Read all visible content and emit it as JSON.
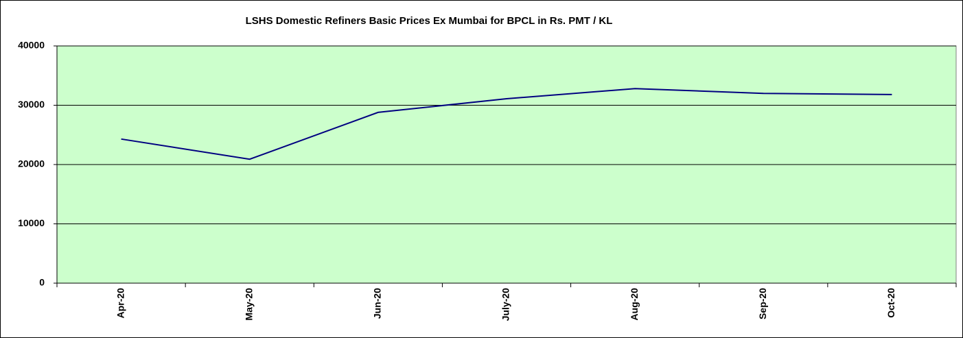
{
  "chart_data": {
    "type": "line",
    "title": "LSHS  Domestic Refiners Basic Prices Ex Mumbai for BPCL  in Rs. PMT / KL",
    "categories": [
      "Apr-20",
      "May-20",
      "Jun-20",
      "July-20",
      "Aug-20",
      "Sep-20",
      "Oct-20"
    ],
    "series": [
      {
        "name": "LSHS",
        "color": "#000080",
        "values": [
          24300,
          20900,
          28800,
          31100,
          32800,
          32000,
          31800
        ]
      }
    ],
    "ylim": [
      0,
      40000
    ],
    "yticks": [
      0,
      10000,
      20000,
      30000,
      40000
    ],
    "grid": true,
    "plot_background": "#ccffcc"
  }
}
